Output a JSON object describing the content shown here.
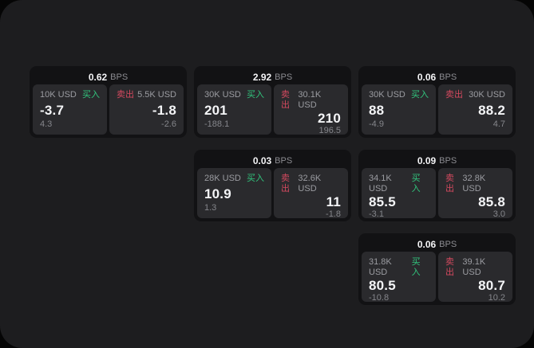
{
  "labels": {
    "bps_unit": "BPS",
    "buy": "买入",
    "sell": "卖出"
  },
  "colors": {
    "page_bg": "#1d1d1f",
    "card_bg": "#121214",
    "panel_bg": "#2a2a2d",
    "buy_green": "#31c57d",
    "sell_red": "#d4495f",
    "value_white": "#f4f5f7",
    "muted_gray": "#8c8c91"
  },
  "cards": [
    {
      "grid": {
        "row": 1,
        "col": 1
      },
      "bps": "0.62",
      "unit": "BPS",
      "buy": {
        "amount": "10K USD",
        "side": "买入",
        "value": "-3.7",
        "sub": "4.3"
      },
      "sell": {
        "amount": "5.5K USD",
        "side": "卖出",
        "value": "-1.8",
        "sub": "-2.6"
      }
    },
    {
      "grid": {
        "row": 1,
        "col": 2
      },
      "bps": "2.92",
      "unit": "BPS",
      "buy": {
        "amount": "30K USD",
        "side": "买入",
        "value": "201",
        "sub": "-188.1"
      },
      "sell": {
        "amount": "30.1K USD",
        "side": "卖出",
        "value": "210",
        "sub": "196.5"
      }
    },
    {
      "grid": {
        "row": 1,
        "col": 3
      },
      "bps": "0.06",
      "unit": "BPS",
      "buy": {
        "amount": "30K USD",
        "side": "买入",
        "value": "88",
        "sub": "-4.9"
      },
      "sell": {
        "amount": "30K USD",
        "side": "卖出",
        "value": "88.2",
        "sub": "4.7"
      }
    },
    {
      "grid": {
        "row": 2,
        "col": 2
      },
      "bps": "0.03",
      "unit": "BPS",
      "buy": {
        "amount": "28K USD",
        "side": "买入",
        "value": "10.9",
        "sub": "1.3"
      },
      "sell": {
        "amount": "32.6K USD",
        "side": "卖出",
        "value": "11",
        "sub": "-1.8"
      }
    },
    {
      "grid": {
        "row": 2,
        "col": 3
      },
      "bps": "0.09",
      "unit": "BPS",
      "buy": {
        "amount": "34.1K USD",
        "side": "买入",
        "value": "85.5",
        "sub": "-3.1"
      },
      "sell": {
        "amount": "32.8K USD",
        "side": "卖出",
        "value": "85.8",
        "sub": "3.0"
      }
    },
    {
      "grid": {
        "row": 3,
        "col": 3
      },
      "bps": "0.06",
      "unit": "BPS",
      "buy": {
        "amount": "31.8K USD",
        "side": "买入",
        "value": "80.5",
        "sub": "-10.8"
      },
      "sell": {
        "amount": "39.1K USD",
        "side": "卖出",
        "value": "80.7",
        "sub": "10.2"
      }
    }
  ]
}
